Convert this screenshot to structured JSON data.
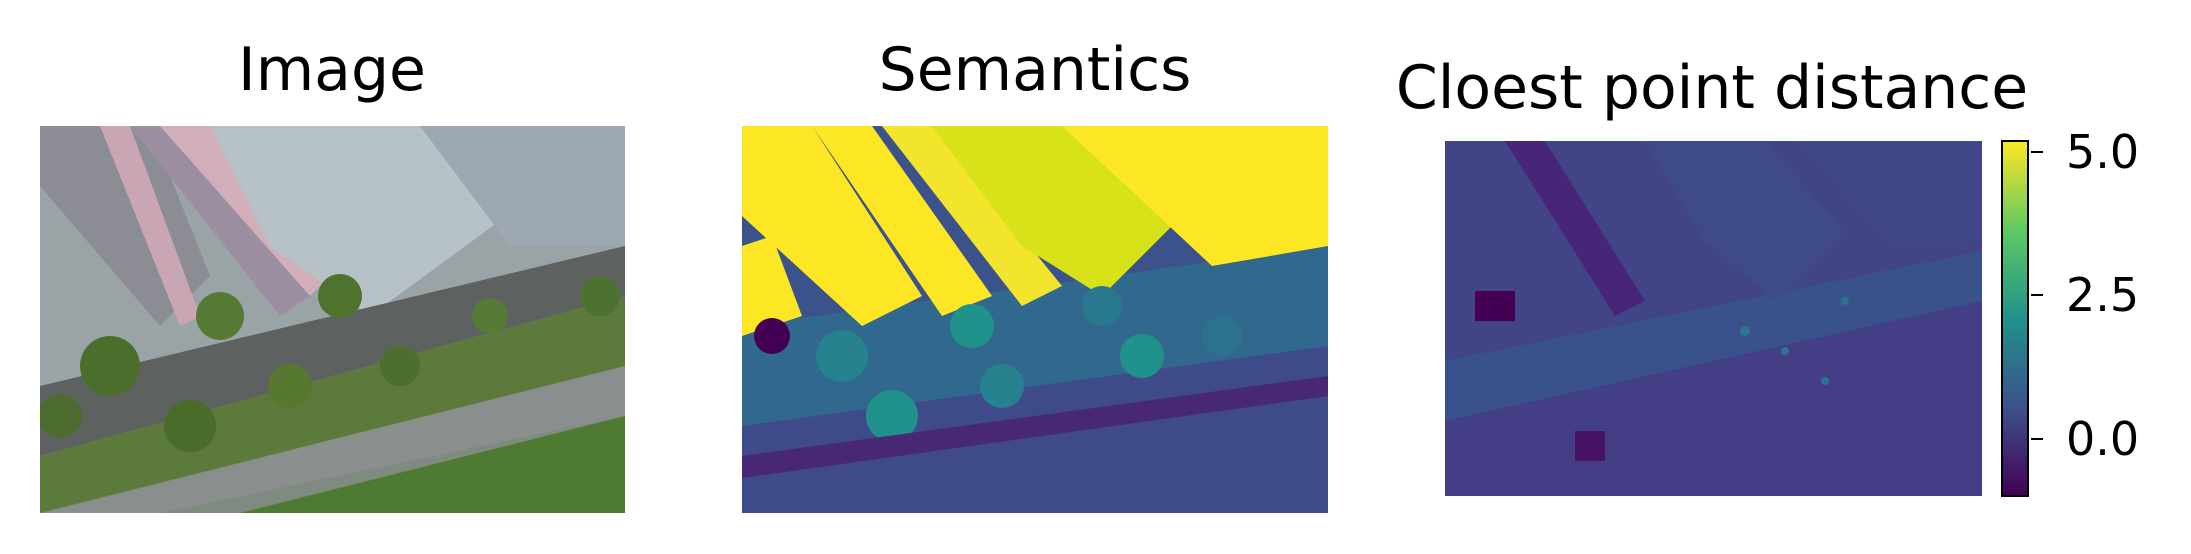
{
  "panels": [
    {
      "title": "Image"
    },
    {
      "title": "Semantics"
    },
    {
      "title": "Cloest point distance"
    }
  ],
  "colorbar": {
    "colormap": "viridis",
    "colors": [
      "#440154",
      "#3b528b",
      "#21918c",
      "#5ec962",
      "#fde725"
    ],
    "range": [
      -1.0,
      5.2
    ],
    "ticks": [
      {
        "value": 5.0,
        "label": "5.0"
      },
      {
        "value": 2.5,
        "label": "2.5"
      },
      {
        "value": 0.0,
        "label": "0.0"
      }
    ]
  }
}
